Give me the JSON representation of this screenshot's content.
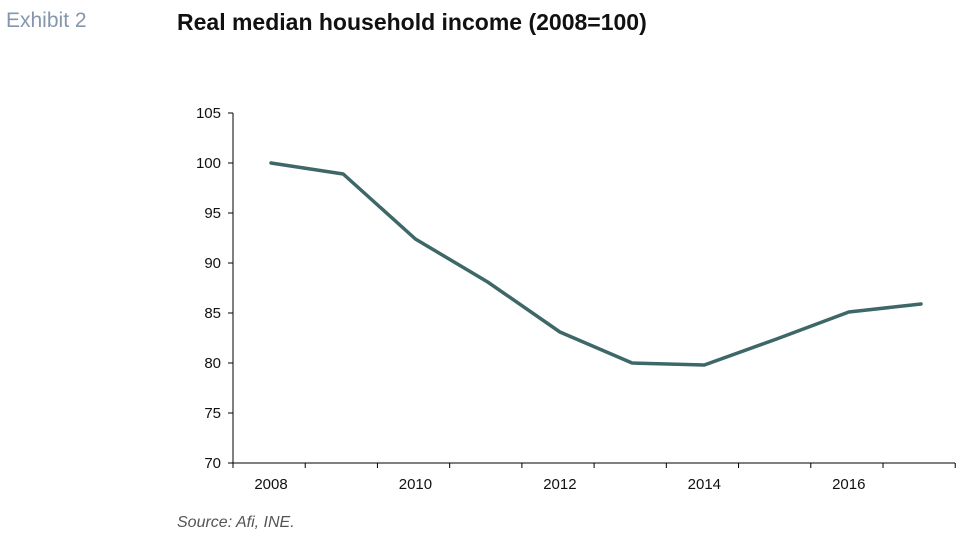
{
  "header": {
    "exhibit": "Exhibit 2",
    "title": "Real median household income (2008=100)"
  },
  "footer": {
    "source": "Source: Afi, INE."
  },
  "colors": {
    "line": "#3e6767",
    "axis": "#000000",
    "exhibit_text": "#8596ad"
  },
  "chart_data": {
    "type": "line",
    "title": "Real median household income (2008=100)",
    "xlabel": "",
    "ylabel": "",
    "x": [
      2008,
      2009,
      2010,
      2011,
      2012,
      2013,
      2014,
      2015,
      2016,
      2017
    ],
    "series": [
      {
        "values": [
          100,
          98.9,
          92.4,
          88.1,
          83.1,
          80.0,
          79.8,
          82.4,
          85.1,
          85.9
        ]
      }
    ],
    "xlim": [
      2008,
      2017
    ],
    "ylim": [
      70,
      105
    ],
    "yticks": [
      70,
      75,
      80,
      85,
      90,
      95,
      100,
      105
    ],
    "xtick_labels": [
      {
        "year": 2008,
        "label": "2008"
      },
      {
        "year": 2010,
        "label": "2010"
      },
      {
        "year": 2012,
        "label": "2012"
      },
      {
        "year": 2014,
        "label": "2014"
      },
      {
        "year": 2016,
        "label": "2016"
      }
    ],
    "grid": false,
    "legend": "none"
  }
}
